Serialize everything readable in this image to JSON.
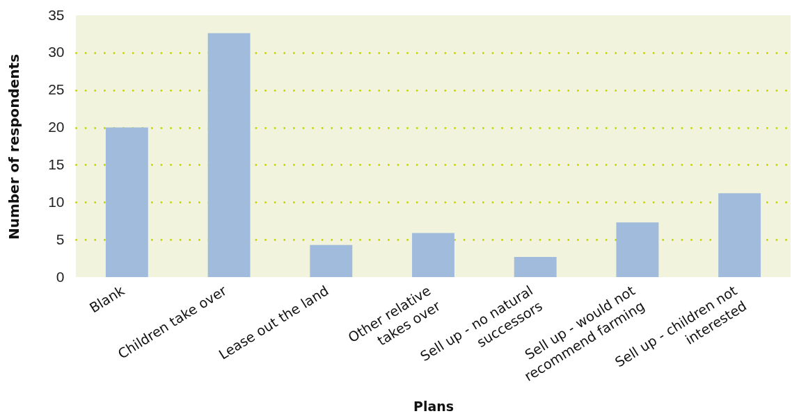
{
  "chart_data": {
    "type": "bar",
    "xlabel": "Plans",
    "ylabel": "Number of respondents",
    "categories": [
      "Blank",
      "Children take over",
      "Lease out the land",
      "Other relative takes over",
      "Sell up - no natural successors",
      "Sell up - would not recommend farming",
      "Sell up - children not interested"
    ],
    "values": [
      20,
      32.6,
      4.3,
      5.9,
      2.7,
      7.3,
      11.2
    ],
    "color": "#a0bbdc",
    "ylim": [
      0,
      35
    ],
    "yticks": [
      0,
      5,
      10,
      15,
      20,
      25,
      30,
      35
    ],
    "grid": "y"
  }
}
